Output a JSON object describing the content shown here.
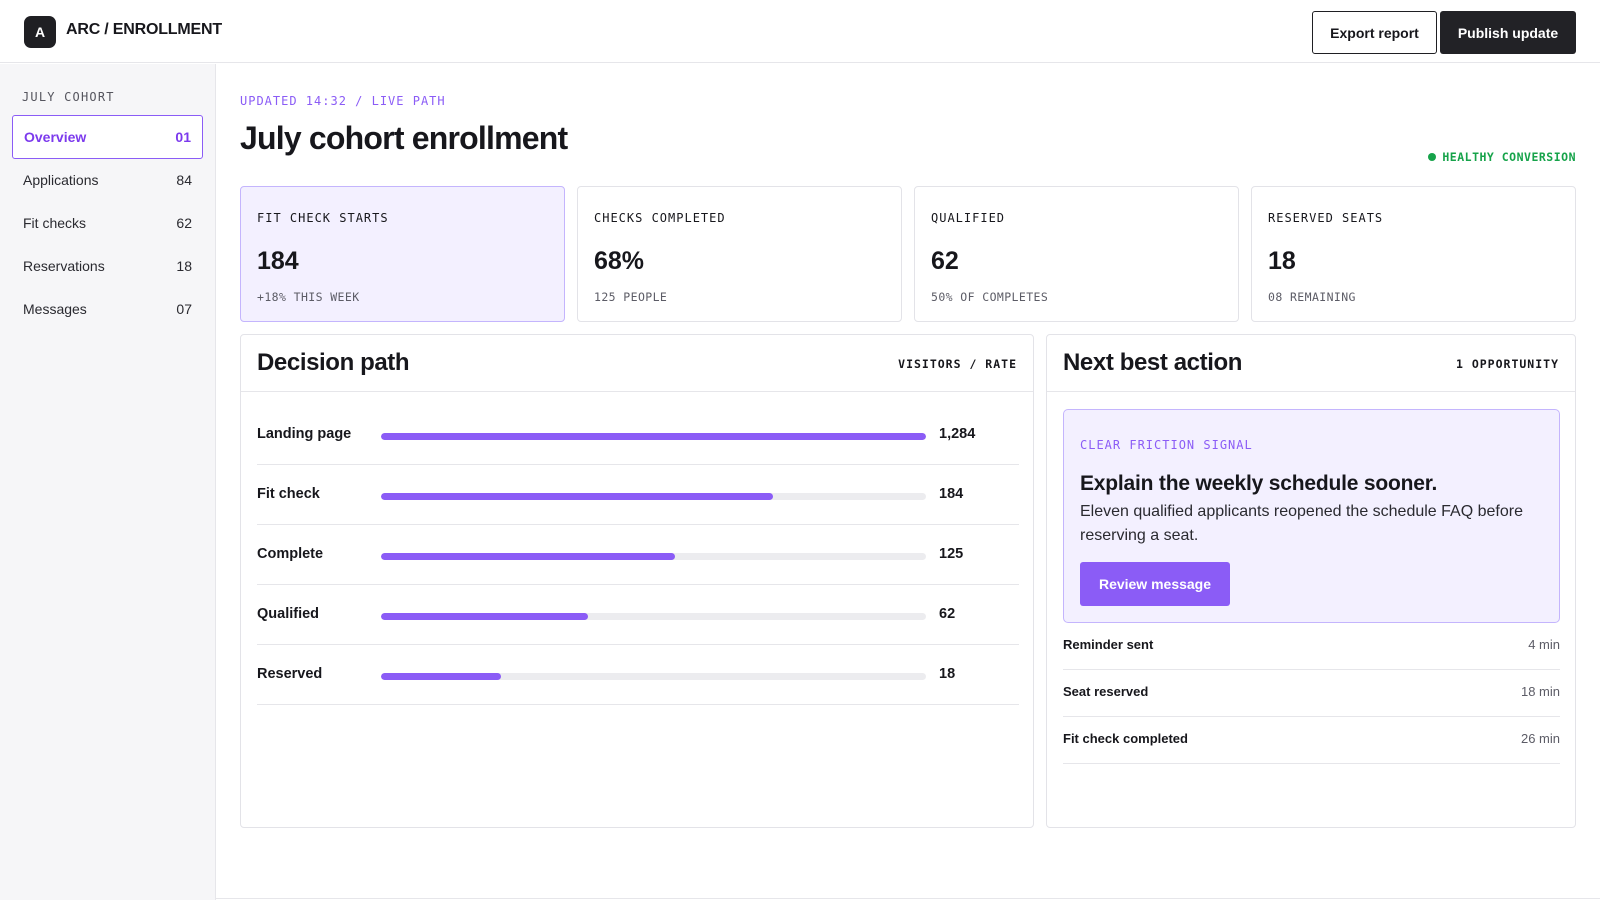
{
  "app": {
    "logo_letter": "A",
    "title": "ARC / ENROLLMENT"
  },
  "toolbar": {
    "export_label": "Export report",
    "publish_label": "Publish update"
  },
  "sidebar": {
    "heading": "JULY COHORT",
    "items": [
      {
        "label": "Overview",
        "count": "01",
        "active": true
      },
      {
        "label": "Applications",
        "count": "84"
      },
      {
        "label": "Fit checks",
        "count": "62"
      },
      {
        "label": "Reservations",
        "count": "18"
      },
      {
        "label": "Messages",
        "count": "07"
      }
    ]
  },
  "header": {
    "updated": "UPDATED 14:32 / LIVE PATH",
    "title": "July cohort enrollment",
    "status": "HEALTHY CONVERSION"
  },
  "kpis": [
    {
      "label": "FIT CHECK STARTS",
      "value": "184",
      "sub": "+18% THIS WEEK"
    },
    {
      "label": "CHECKS COMPLETED",
      "value": "68%",
      "sub": "125 PEOPLE"
    },
    {
      "label": "QUALIFIED",
      "value": "62",
      "sub": "50% OF COMPLETES"
    },
    {
      "label": "RESERVED SEATS",
      "value": "18",
      "sub": "08 REMAINING"
    }
  ],
  "decision_path": {
    "title": "Decision path",
    "meta": "VISITORS / RATE",
    "rows": [
      {
        "label": "Landing page",
        "value": "1,284",
        "fill": 1.0
      },
      {
        "label": "Fit check",
        "value": "184",
        "fill": 0.72
      },
      {
        "label": "Complete",
        "value": "125",
        "fill": 0.54
      },
      {
        "label": "Qualified",
        "value": "62",
        "fill": 0.38
      },
      {
        "label": "Reserved",
        "value": "18",
        "fill": 0.22
      }
    ]
  },
  "next_action": {
    "title": "Next best action",
    "meta": "1 OPPORTUNITY",
    "tag": "CLEAR FRICTION SIGNAL",
    "headline": "Explain the weekly schedule sooner.",
    "body": "Eleven qualified applicants reopened the schedule FAQ before reserving a seat.",
    "button_label": "Review message",
    "activity": [
      {
        "label": "Reminder sent",
        "time": "4 min"
      },
      {
        "label": "Seat reserved",
        "time": "18 min"
      },
      {
        "label": "Fit check completed",
        "time": "26 min"
      }
    ]
  },
  "colors": {
    "accent": "#8b5cf6",
    "positive": "#16a34a",
    "dark": "#222226"
  }
}
